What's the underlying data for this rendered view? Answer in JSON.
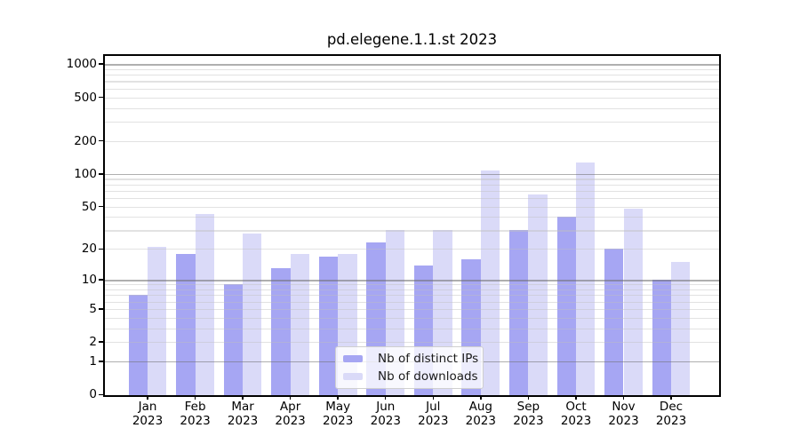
{
  "title": "pd.elegene.1.1.st 2023",
  "chart_data": {
    "type": "bar",
    "title": "pd.elegene.1.1.st 2023",
    "categories": [
      "Jan",
      "Feb",
      "Mar",
      "Apr",
      "May",
      "Jun",
      "Jul",
      "Aug",
      "Sep",
      "Oct",
      "Nov",
      "Dec"
    ],
    "category_year": "2023",
    "series": [
      {
        "name": "Nb of distinct IPs",
        "color": "#a6a6f3",
        "values": [
          7,
          18,
          9,
          13,
          17,
          23,
          14,
          16,
          30,
          40,
          20,
          10
        ]
      },
      {
        "name": "Nb of downloads",
        "color": "#dadaf8",
        "values": [
          21,
          43,
          28,
          18,
          18,
          30,
          30,
          108,
          65,
          126,
          48,
          15
        ]
      }
    ],
    "y_scale": "log1p",
    "ylim": [
      0,
      1200
    ],
    "y_ticks": [
      0,
      1,
      2,
      5,
      10,
      20,
      50,
      100,
      200,
      500,
      1000
    ],
    "grid": {
      "major": [
        1,
        10,
        100,
        1000
      ],
      "minor": [
        2,
        3,
        4,
        5,
        6,
        7,
        8,
        9,
        20,
        30,
        40,
        50,
        60,
        70,
        80,
        90,
        200,
        300,
        400,
        500,
        600,
        700,
        800,
        900
      ]
    },
    "grid_on": true,
    "legend_position": "lower center",
    "xlabel": "",
    "ylabel": ""
  }
}
